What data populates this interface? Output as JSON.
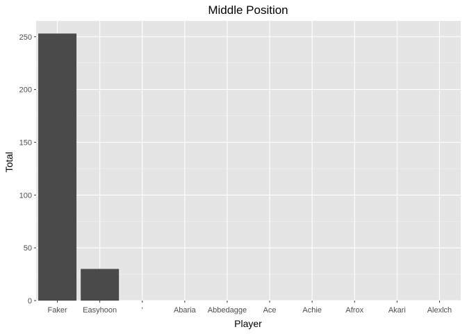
{
  "chart_data": {
    "type": "bar",
    "title": "Middle Position",
    "xlabel": "Player",
    "ylabel": "Total",
    "categories": [
      "Faker",
      "Easyhoon",
      "'",
      "Abaria",
      "Abbedagge",
      "Ace",
      "Achie",
      "Afrox",
      "Akari",
      "Alexlch"
    ],
    "values": [
      253,
      30,
      0,
      0,
      0,
      0,
      0,
      0,
      0,
      0
    ],
    "ylim": [
      0,
      265
    ],
    "yticks": [
      0,
      50,
      100,
      150,
      200,
      250
    ],
    "grid": true,
    "legend": "none",
    "colors": {
      "panel": "#e5e5e5",
      "grid_major": "#ffffff",
      "bar": "#4a4a4a",
      "tick_text": "#4d4d4d",
      "tick_mark": "#333333"
    }
  }
}
